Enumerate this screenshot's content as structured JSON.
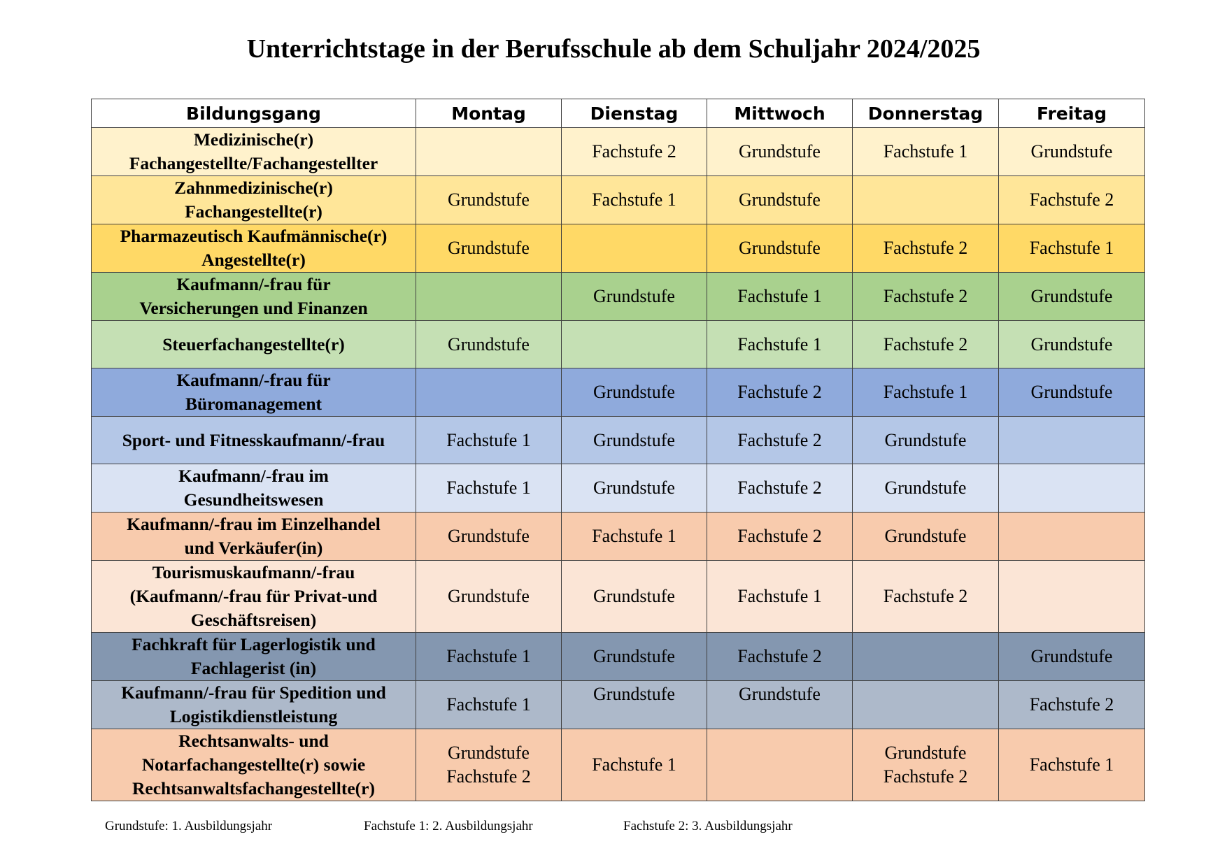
{
  "title": "Unterrichtstage in der Berufsschule ab dem Schuljahr 2024/2025",
  "columns": [
    "Bildungsgang",
    "Montag",
    "Dienstag",
    "Mittwoch",
    "Donnerstag",
    "Freitag"
  ],
  "rows": [
    {
      "program": "Medizinische(r)\nFachangestellte/Fachangestellter",
      "color": "#FFF2CC",
      "days": [
        "",
        "Fachstufe 2",
        "Grundstufe",
        "Fachstufe 1",
        "Grundstufe"
      ]
    },
    {
      "program": "Zahnmedizinische(r)\nFachangestellte(r)",
      "color": "#FFE699",
      "days": [
        "Grundstufe",
        "Fachstufe 1",
        "Grundstufe",
        "",
        "Fachstufe 2"
      ]
    },
    {
      "program": "Pharmazeutisch Kaufmännische(r)\nAngestellte(r)",
      "color": "#FFD966",
      "days": [
        "Grundstufe",
        "",
        "Grundstufe",
        "Fachstufe 2",
        "Fachstufe 1"
      ]
    },
    {
      "program": "Kaufmann/-frau für\nVersicherungen und Finanzen",
      "color": "#A9D18E",
      "days": [
        "",
        "Grundstufe",
        "Fachstufe 1",
        "Fachstufe 2",
        "Grundstufe"
      ]
    },
    {
      "program": "Steuerfachangestellte(r)",
      "color": "#C5E0B4",
      "days": [
        "Grundstufe",
        "",
        "Fachstufe 1",
        "Fachstufe 2",
        "Grundstufe"
      ]
    },
    {
      "program": "Kaufmann/-frau für\nBüromanagement",
      "color": "#8FAADC",
      "days": [
        "",
        "Grundstufe",
        "Fachstufe 2",
        "Fachstufe 1",
        "Grundstufe"
      ]
    },
    {
      "program": "Sport- und Fitnesskaufmann/-frau",
      "color": "#B4C7E7",
      "days": [
        "Fachstufe 1",
        "Grundstufe",
        "Fachstufe 2",
        "Grundstufe",
        ""
      ]
    },
    {
      "program": "Kaufmann/-frau im\nGesundheitswesen",
      "color": "#DAE3F3",
      "days": [
        "Fachstufe 1",
        "Grundstufe",
        "Fachstufe 2",
        "Grundstufe",
        ""
      ]
    },
    {
      "program": "Kaufmann/-frau im Einzelhandel\nund Verkäufer(in)",
      "color": "#F8CBAD",
      "days": [
        "Grundstufe",
        "Fachstufe 1",
        "Fachstufe 2",
        "Grundstufe",
        ""
      ]
    },
    {
      "program": "Tourismuskaufmann/-frau\n(Kaufmann/-frau für Privat-und\nGeschäftsreisen)",
      "color": "#FBE5D6",
      "days": [
        "Grundstufe",
        "Grundstufe",
        "Fachstufe 1",
        "Fachstufe 2",
        ""
      ]
    },
    {
      "program": "Fachkraft für Lagerlogistik und\nFachlagerist (in)",
      "color": "#8497B0",
      "days": [
        "Fachstufe 1",
        "Grundstufe",
        "Fachstufe 2",
        "",
        "Grundstufe"
      ]
    },
    {
      "program": "Kaufmann/-frau für Spedition und\nLogistikdienstleistung",
      "color": "#ADB9CA",
      "days": [
        "Fachstufe 1",
        "Grundstufe",
        "Grundstufe",
        "",
        "Fachstufe 2"
      ],
      "top_aligned": [
        false,
        true,
        true,
        false,
        false
      ]
    },
    {
      "program": "Rechtsanwalts- und\nNotarfachangestellte(r) sowie\nRechtsanwaltsfachangestellte(r)",
      "color": "#F8CBAD",
      "days": [
        "Grundstufe\nFachstufe 2",
        "Fachstufe 1",
        "",
        "Grundstufe\nFachstufe 2",
        "Fachstufe 1"
      ]
    }
  ],
  "legend": [
    "Grundstufe: 1. Ausbildungsjahr",
    "Fachstufe 1: 2. Ausbildungsjahr",
    "Fachstufe 2: 3. Ausbildungsjahr"
  ]
}
